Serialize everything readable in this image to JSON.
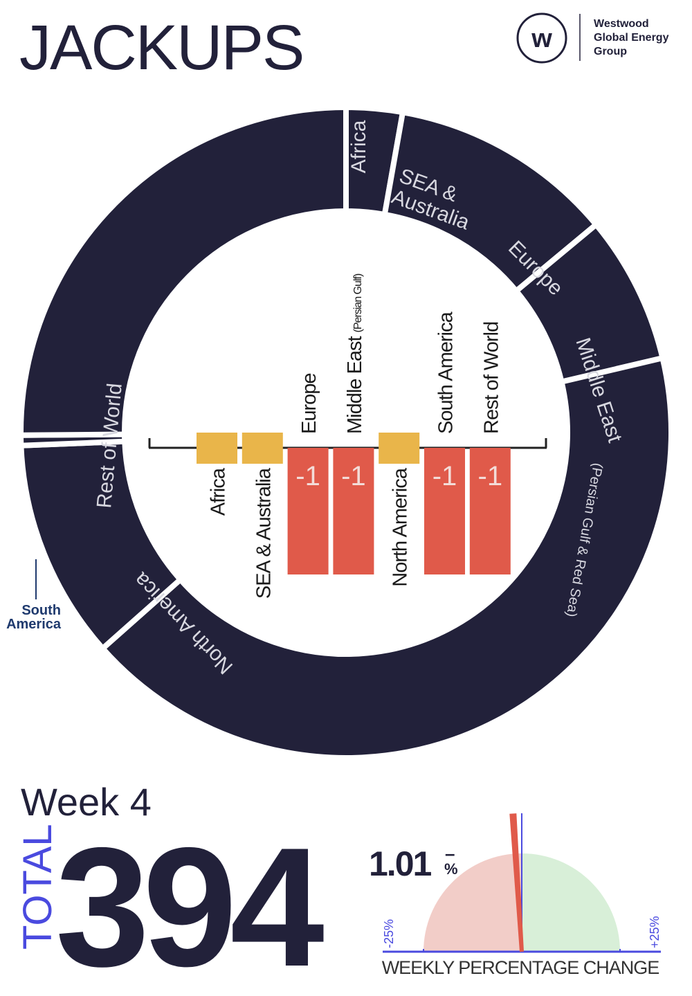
{
  "title": "JACKUPS",
  "logo": {
    "lines": [
      "Westwood",
      "Global Energy",
      "Group"
    ]
  },
  "week": "Week 4",
  "total_label": "TOTAL",
  "total": 394,
  "chart_data": [
    {
      "type": "donut",
      "categories": [
        "Africa",
        "SEA & Australia",
        "Europe",
        "Middle East",
        "North America",
        "South America",
        "Rest of World"
      ],
      "notes": [
        null,
        null,
        null,
        "(Persian Gulf & Red Sea)",
        null,
        null,
        null
      ],
      "values": [
        11,
        44,
        29,
        166,
        43,
        2,
        99
      ],
      "color": "#22213a"
    },
    {
      "type": "bar",
      "categories": [
        "Africa",
        "SEA & Australia",
        "Europe",
        "Middle East",
        "North America",
        "South America",
        "Rest of World"
      ],
      "notes": [
        null,
        null,
        null,
        "(Persian Gulf)",
        null,
        null,
        null
      ],
      "values": [
        0,
        0,
        -1,
        -1,
        0,
        -1,
        -1
      ],
      "value_labels": [
        null,
        null,
        "-1",
        "-1",
        null,
        "-1",
        "-1"
      ],
      "ylim": [
        -1,
        1
      ],
      "colors": {
        "negative": "#e05a4a",
        "zero": "#e9b54a"
      }
    },
    {
      "type": "gauge",
      "value": -1.01,
      "value_label": "1.01",
      "sign": "–",
      "unit": "%",
      "xlim": [
        -25,
        25
      ],
      "xticks": [
        {
          "value": -25,
          "label": "-25%"
        },
        {
          "value": 25,
          "label": "+25%"
        }
      ],
      "xlabel": "WEEKLY PERCENTAGE CHANGE",
      "colors": {
        "needle": "#e05a4a",
        "negative": "#f2cdc8",
        "positive": "#d8efd8",
        "axis": "#4a4adf"
      }
    }
  ]
}
